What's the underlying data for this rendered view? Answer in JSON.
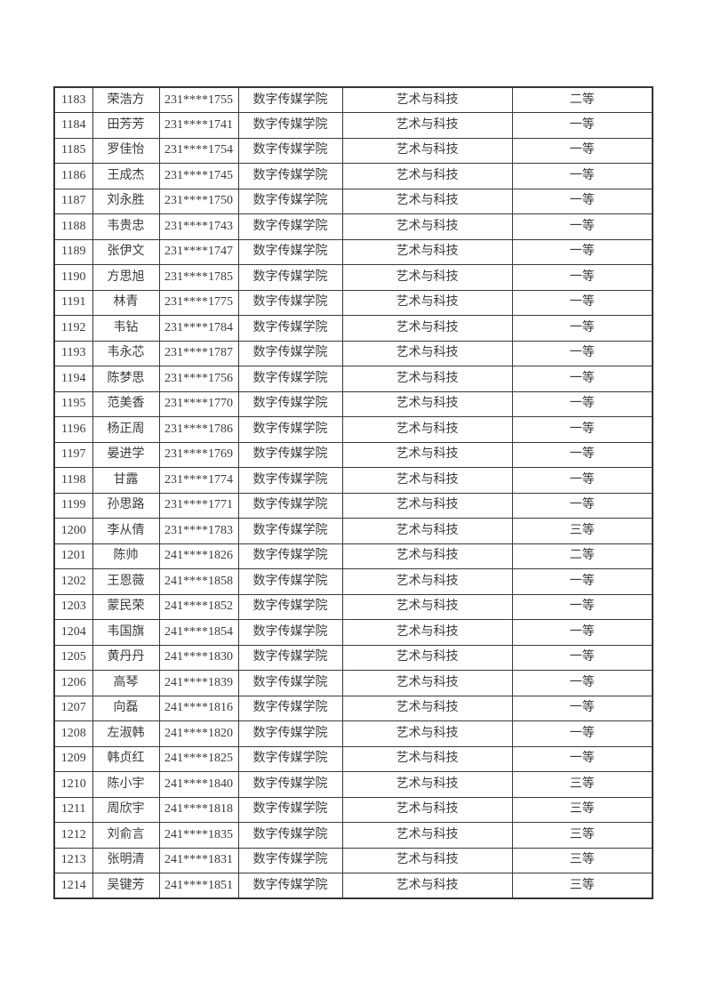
{
  "page": {
    "type": "document-table-page",
    "background_color": "#ffffff",
    "text_color": "#3b3b3b",
    "border_color": "#3a3a3a"
  },
  "table": {
    "column_keys": [
      "index",
      "name",
      "student_id",
      "college",
      "major",
      "award"
    ],
    "rows": [
      {
        "index": "1183",
        "name": "荣浩方",
        "student_id": "231****1755",
        "college": "数字传媒学院",
        "major": "艺术与科技",
        "award": "二等"
      },
      {
        "index": "1184",
        "name": "田芳芳",
        "student_id": "231****1741",
        "college": "数字传媒学院",
        "major": "艺术与科技",
        "award": "一等"
      },
      {
        "index": "1185",
        "name": "罗佳怡",
        "student_id": "231****1754",
        "college": "数字传媒学院",
        "major": "艺术与科技",
        "award": "一等"
      },
      {
        "index": "1186",
        "name": "王成杰",
        "student_id": "231****1745",
        "college": "数字传媒学院",
        "major": "艺术与科技",
        "award": "一等"
      },
      {
        "index": "1187",
        "name": "刘永胜",
        "student_id": "231****1750",
        "college": "数字传媒学院",
        "major": "艺术与科技",
        "award": "一等"
      },
      {
        "index": "1188",
        "name": "韦贵忠",
        "student_id": "231****1743",
        "college": "数字传媒学院",
        "major": "艺术与科技",
        "award": "一等"
      },
      {
        "index": "1189",
        "name": "张伊文",
        "student_id": "231****1747",
        "college": "数字传媒学院",
        "major": "艺术与科技",
        "award": "一等"
      },
      {
        "index": "1190",
        "name": "方思旭",
        "student_id": "231****1785",
        "college": "数字传媒学院",
        "major": "艺术与科技",
        "award": "一等"
      },
      {
        "index": "1191",
        "name": "林青",
        "student_id": "231****1775",
        "college": "数字传媒学院",
        "major": "艺术与科技",
        "award": "一等"
      },
      {
        "index": "1192",
        "name": "韦钻",
        "student_id": "231****1784",
        "college": "数字传媒学院",
        "major": "艺术与科技",
        "award": "一等"
      },
      {
        "index": "1193",
        "name": "韦永芯",
        "student_id": "231****1787",
        "college": "数字传媒学院",
        "major": "艺术与科技",
        "award": "一等"
      },
      {
        "index": "1194",
        "name": "陈梦思",
        "student_id": "231****1756",
        "college": "数字传媒学院",
        "major": "艺术与科技",
        "award": "一等"
      },
      {
        "index": "1195",
        "name": "范美香",
        "student_id": "231****1770",
        "college": "数字传媒学院",
        "major": "艺术与科技",
        "award": "一等"
      },
      {
        "index": "1196",
        "name": "杨正周",
        "student_id": "231****1786",
        "college": "数字传媒学院",
        "major": "艺术与科技",
        "award": "一等"
      },
      {
        "index": "1197",
        "name": "晏进学",
        "student_id": "231****1769",
        "college": "数字传媒学院",
        "major": "艺术与科技",
        "award": "一等"
      },
      {
        "index": "1198",
        "name": "甘露",
        "student_id": "231****1774",
        "college": "数字传媒学院",
        "major": "艺术与科技",
        "award": "一等"
      },
      {
        "index": "1199",
        "name": "孙思路",
        "student_id": "231****1771",
        "college": "数字传媒学院",
        "major": "艺术与科技",
        "award": "一等"
      },
      {
        "index": "1200",
        "name": "李从倩",
        "student_id": "231****1783",
        "college": "数字传媒学院",
        "major": "艺术与科技",
        "award": "三等"
      },
      {
        "index": "1201",
        "name": "陈帅",
        "student_id": "241****1826",
        "college": "数字传媒学院",
        "major": "艺术与科技",
        "award": "二等"
      },
      {
        "index": "1202",
        "name": "王恩薇",
        "student_id": "241****1858",
        "college": "数字传媒学院",
        "major": "艺术与科技",
        "award": "一等"
      },
      {
        "index": "1203",
        "name": "蒙民荣",
        "student_id": "241****1852",
        "college": "数字传媒学院",
        "major": "艺术与科技",
        "award": "一等"
      },
      {
        "index": "1204",
        "name": "韦国旗",
        "student_id": "241****1854",
        "college": "数字传媒学院",
        "major": "艺术与科技",
        "award": "一等"
      },
      {
        "index": "1205",
        "name": "黄丹丹",
        "student_id": "241****1830",
        "college": "数字传媒学院",
        "major": "艺术与科技",
        "award": "一等"
      },
      {
        "index": "1206",
        "name": "高琴",
        "student_id": "241****1839",
        "college": "数字传媒学院",
        "major": "艺术与科技",
        "award": "一等"
      },
      {
        "index": "1207",
        "name": "向磊",
        "student_id": "241****1816",
        "college": "数字传媒学院",
        "major": "艺术与科技",
        "award": "一等"
      },
      {
        "index": "1208",
        "name": "左淑韩",
        "student_id": "241****1820",
        "college": "数字传媒学院",
        "major": "艺术与科技",
        "award": "一等"
      },
      {
        "index": "1209",
        "name": "韩贞红",
        "student_id": "241****1825",
        "college": "数字传媒学院",
        "major": "艺术与科技",
        "award": "一等"
      },
      {
        "index": "1210",
        "name": "陈小宇",
        "student_id": "241****1840",
        "college": "数字传媒学院",
        "major": "艺术与科技",
        "award": "三等"
      },
      {
        "index": "1211",
        "name": "周欣宇",
        "student_id": "241****1818",
        "college": "数字传媒学院",
        "major": "艺术与科技",
        "award": "三等"
      },
      {
        "index": "1212",
        "name": "刘俞言",
        "student_id": "241****1835",
        "college": "数字传媒学院",
        "major": "艺术与科技",
        "award": "三等"
      },
      {
        "index": "1213",
        "name": "张明清",
        "student_id": "241****1831",
        "college": "数字传媒学院",
        "major": "艺术与科技",
        "award": "三等"
      },
      {
        "index": "1214",
        "name": "吴键芳",
        "student_id": "241****1851",
        "college": "数字传媒学院",
        "major": "艺术与科技",
        "award": "三等"
      }
    ]
  }
}
